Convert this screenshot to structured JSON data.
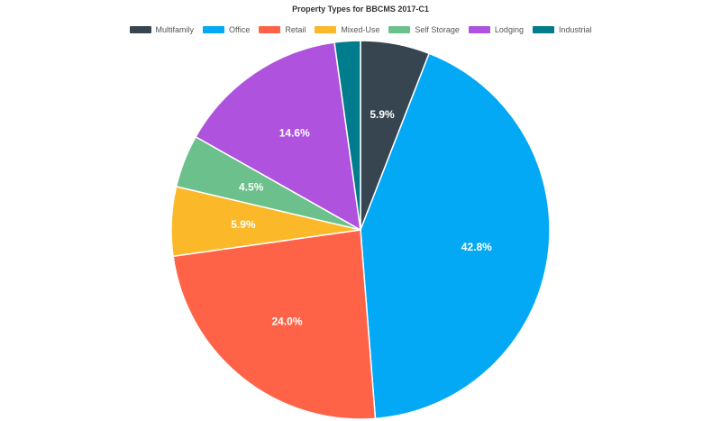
{
  "chart_data": {
    "type": "pie",
    "title": "Property Types for BBCMS 2017-C1",
    "legend_position": "top",
    "slices": [
      {
        "label": "Multifamily",
        "value": 5.9,
        "display": "5.9%",
        "color": "#36454f"
      },
      {
        "label": "Office",
        "value": 42.8,
        "display": "42.8%",
        "color": "#03a9f4"
      },
      {
        "label": "Retail",
        "value": 24.0,
        "display": "24.0%",
        "color": "#ff6347"
      },
      {
        "label": "Mixed-Use",
        "value": 5.9,
        "display": "5.9%",
        "color": "#fbb829"
      },
      {
        "label": "Self Storage",
        "value": 4.5,
        "display": "4.5%",
        "color": "#6cc08b"
      },
      {
        "label": "Lodging",
        "value": 14.6,
        "display": "14.6%",
        "color": "#af52de"
      },
      {
        "label": "Industrial",
        "value": 2.2,
        "display": "",
        "color": "#007d8c"
      }
    ]
  }
}
